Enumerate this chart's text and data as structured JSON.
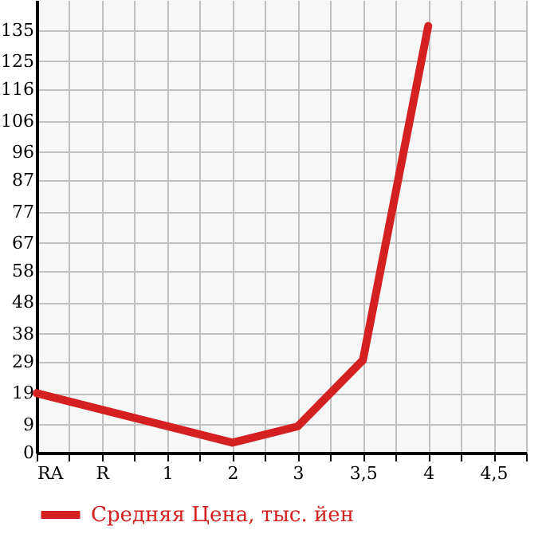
{
  "chart_data": {
    "type": "line",
    "categories": [
      "RA",
      "R",
      "1",
      "2",
      "3",
      "3,5",
      "4",
      "4,5"
    ],
    "series": [
      {
        "name": "Средняя Цена, тыс. йен",
        "color": "#d42020",
        "values": [
          19,
          null,
          null,
          3.2,
          8.4,
          29.6,
          136.3,
          null
        ]
      }
    ],
    "ylim": [
      0,
      144.6
    ],
    "yticks": [
      0,
      9,
      19,
      29,
      38,
      48,
      58,
      67,
      77,
      87,
      96,
      106,
      116,
      125,
      135
    ],
    "grid": true,
    "legend": "bottom",
    "marker": "none",
    "line_style": "solid"
  }
}
